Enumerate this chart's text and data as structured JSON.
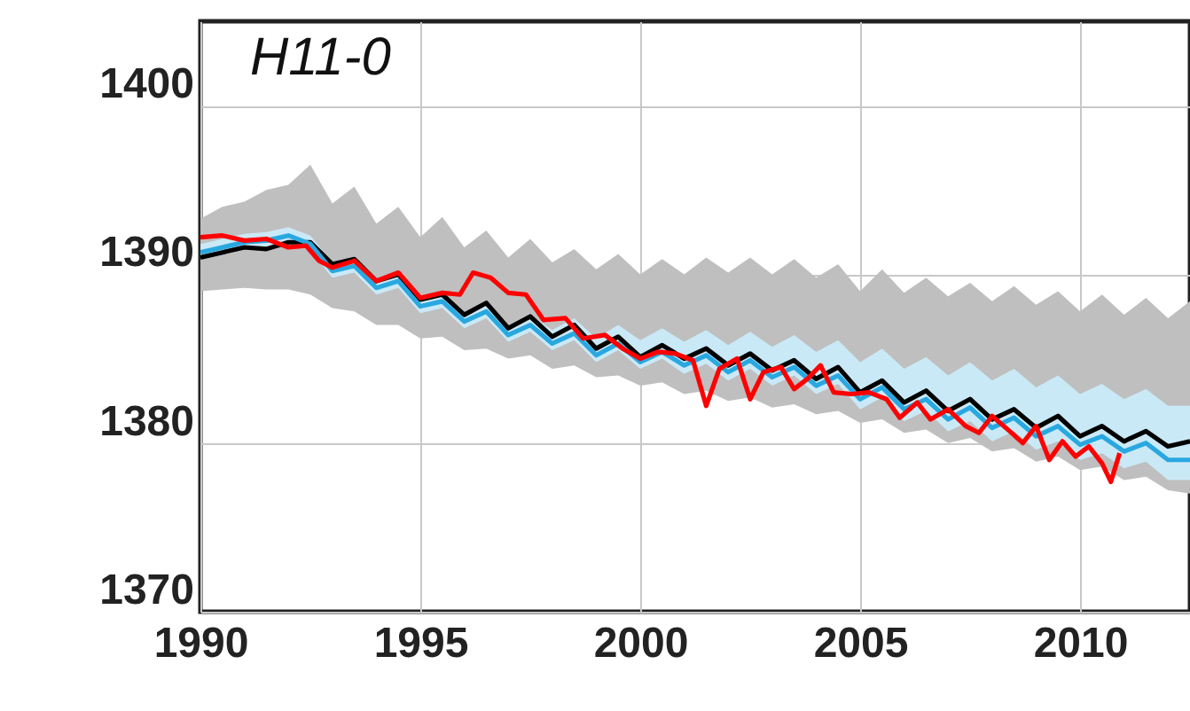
{
  "chart_data": {
    "type": "line",
    "annotations": [
      "H11-0"
    ],
    "xlim": [
      1990,
      2012.5
    ],
    "xticks": [
      1990,
      1995,
      2000,
      2005,
      2010
    ],
    "ylim": [
      1370,
      1405
    ],
    "yticks": [
      1370,
      1380,
      1390,
      1400
    ],
    "grid": true,
    "line_style": "solid",
    "series": [
      {
        "color": "#000000",
        "x": [
          1990.0,
          1990.5,
          1991.0,
          1991.5,
          1992.0,
          1992.5,
          1993.0,
          1993.5,
          1994.0,
          1994.5,
          1995.0,
          1995.5,
          1996.0,
          1996.5,
          1997.0,
          1997.5,
          1998.0,
          1998.5,
          1999.0,
          1999.5,
          2000.0,
          2000.5,
          2001.0,
          2001.5,
          2002.0,
          2002.5,
          2003.0,
          2003.5,
          2004.0,
          2004.5,
          2005.0,
          2005.5,
          2006.0,
          2006.5,
          2007.0,
          2007.5,
          2008.0,
          2008.5,
          2009.0,
          2009.5,
          2010.0,
          2010.5,
          2011.0,
          2011.5,
          2012.0,
          2012.5
        ],
        "values": [
          1391.0,
          1391.3,
          1391.6,
          1391.5,
          1391.9,
          1391.9,
          1390.6,
          1390.9,
          1389.6,
          1390.0,
          1388.5,
          1388.8,
          1387.6,
          1388.3,
          1386.8,
          1387.5,
          1386.3,
          1387.0,
          1385.6,
          1386.3,
          1385.1,
          1385.8,
          1385.0,
          1385.6,
          1384.6,
          1385.3,
          1384.3,
          1384.9,
          1383.8,
          1384.5,
          1383.0,
          1383.7,
          1382.4,
          1383.1,
          1381.9,
          1382.6,
          1381.4,
          1382.0,
          1380.9,
          1381.6,
          1380.4,
          1381.0,
          1380.1,
          1380.7,
          1379.8,
          1380.1
        ],
        "upper": [
          1393.3,
          1394.0,
          1394.3,
          1395.0,
          1395.3,
          1396.5,
          1394.2,
          1395.2,
          1393.0,
          1394.0,
          1392.2,
          1393.4,
          1391.6,
          1392.6,
          1391.0,
          1392.1,
          1390.7,
          1391.5,
          1390.3,
          1391.2,
          1390.0,
          1390.9,
          1390.0,
          1391.0,
          1390.1,
          1391.0,
          1390.0,
          1390.9,
          1389.8,
          1390.6,
          1389.0,
          1390.3,
          1388.9,
          1389.8,
          1388.7,
          1389.5,
          1388.4,
          1389.3,
          1388.2,
          1389.0,
          1387.8,
          1388.8,
          1387.6,
          1388.6,
          1387.4,
          1388.4
        ],
        "lower": [
          1389.0,
          1389.1,
          1389.2,
          1389.1,
          1389.1,
          1388.8,
          1388.0,
          1387.8,
          1387.0,
          1387.0,
          1386.2,
          1386.3,
          1385.5,
          1385.6,
          1385.0,
          1385.2,
          1384.4,
          1384.6,
          1383.9,
          1384.0,
          1383.4,
          1383.6,
          1382.9,
          1383.1,
          1382.5,
          1382.7,
          1382.1,
          1382.3,
          1381.7,
          1381.9,
          1381.2,
          1381.4,
          1380.6,
          1380.8,
          1380.0,
          1380.3,
          1379.5,
          1379.7,
          1378.9,
          1379.2,
          1378.4,
          1378.6,
          1377.8,
          1378.0,
          1377.2,
          1377.0
        ]
      },
      {
        "color": "#29a8e0",
        "x": [
          1990.0,
          1990.5,
          1991.0,
          1991.5,
          1992.0,
          1992.5,
          1993.0,
          1993.5,
          1994.0,
          1994.5,
          1995.0,
          1995.5,
          1996.0,
          1996.5,
          1997.0,
          1997.5,
          1998.0,
          1998.5,
          1999.0,
          1999.5,
          2000.0,
          2000.5,
          2001.0,
          2001.5,
          2002.0,
          2002.5,
          2003.0,
          2003.5,
          2004.0,
          2004.5,
          2005.0,
          2005.5,
          2006.0,
          2006.5,
          2007.0,
          2007.5,
          2008.0,
          2008.5,
          2009.0,
          2009.5,
          2010.0,
          2010.5,
          2011.0,
          2011.5,
          2012.0,
          2012.5
        ],
        "values": [
          1391.3,
          1391.6,
          1391.9,
          1392.0,
          1392.3,
          1391.8,
          1390.2,
          1390.5,
          1389.2,
          1389.6,
          1388.1,
          1388.4,
          1387.2,
          1387.8,
          1386.4,
          1387.0,
          1385.9,
          1386.5,
          1385.2,
          1385.9,
          1384.8,
          1385.4,
          1384.6,
          1385.2,
          1384.2,
          1384.9,
          1383.9,
          1384.5,
          1383.4,
          1384.0,
          1382.6,
          1383.3,
          1382.0,
          1382.6,
          1381.4,
          1382.1,
          1380.9,
          1381.5,
          1380.4,
          1381.0,
          1379.9,
          1380.4,
          1379.5,
          1380.0,
          1379.0,
          1379.0
        ],
        "upper": [
          1391.8,
          1392.1,
          1392.4,
          1392.5,
          1392.8,
          1392.3,
          1390.7,
          1391.0,
          1389.7,
          1390.1,
          1388.6,
          1388.9,
          1387.7,
          1388.3,
          1386.9,
          1387.6,
          1386.7,
          1387.4,
          1386.2,
          1387.0,
          1386.1,
          1386.8,
          1386.0,
          1386.7,
          1385.8,
          1386.6,
          1385.7,
          1386.4,
          1385.4,
          1386.1,
          1384.8,
          1385.6,
          1384.4,
          1385.1,
          1384.0,
          1384.8,
          1383.7,
          1384.4,
          1383.3,
          1384.0,
          1382.9,
          1383.5,
          1382.6,
          1383.2,
          1382.2,
          1382.2
        ],
        "lower": [
          1390.9,
          1391.2,
          1391.5,
          1391.6,
          1391.9,
          1391.4,
          1389.8,
          1390.1,
          1388.8,
          1389.2,
          1387.7,
          1388.0,
          1386.8,
          1387.4,
          1386.0,
          1386.6,
          1385.5,
          1386.1,
          1384.8,
          1385.5,
          1384.4,
          1385.0,
          1384.1,
          1384.7,
          1383.7,
          1384.4,
          1383.4,
          1384.0,
          1382.9,
          1383.5,
          1382.0,
          1382.7,
          1381.3,
          1381.9,
          1380.7,
          1381.3,
          1380.1,
          1380.7,
          1379.6,
          1380.1,
          1379.0,
          1379.4,
          1378.5,
          1378.9,
          1377.8,
          1377.8
        ]
      },
      {
        "color": "#ff0000",
        "x": [
          1990.0,
          1990.5,
          1991.0,
          1991.5,
          1992.0,
          1992.4,
          1992.7,
          1993.0,
          1993.5,
          1994.0,
          1994.5,
          1995.0,
          1995.5,
          1995.9,
          1996.2,
          1996.6,
          1997.0,
          1997.4,
          1997.8,
          1998.3,
          1998.7,
          1999.2,
          1999.6,
          2000.0,
          2000.4,
          2000.8,
          2001.2,
          2001.5,
          2001.8,
          2002.2,
          2002.5,
          2002.8,
          2003.2,
          2003.5,
          2003.8,
          2004.1,
          2004.4,
          2004.8,
          2005.2,
          2005.6,
          2005.9,
          2006.3,
          2006.6,
          2007.0,
          2007.4,
          2007.7,
          2008.0,
          2008.4,
          2008.7,
          2009.0,
          2009.3,
          2009.6,
          2009.9,
          2010.2,
          2010.5,
          2010.7,
          2010.9
        ],
        "values": [
          1392.2,
          1392.3,
          1392.0,
          1392.1,
          1391.6,
          1391.7,
          1390.8,
          1390.4,
          1390.8,
          1389.6,
          1390.1,
          1388.6,
          1388.9,
          1388.8,
          1390.1,
          1389.8,
          1388.9,
          1388.8,
          1387.3,
          1387.4,
          1386.2,
          1386.4,
          1385.6,
          1385.0,
          1385.4,
          1385.3,
          1384.9,
          1382.2,
          1384.4,
          1385.0,
          1382.6,
          1384.2,
          1384.5,
          1383.2,
          1383.8,
          1384.6,
          1383.0,
          1382.9,
          1383.0,
          1382.6,
          1381.5,
          1382.4,
          1381.4,
          1382.0,
          1381.0,
          1380.6,
          1381.6,
          1380.7,
          1380.0,
          1381.0,
          1379.0,
          1380.1,
          1379.2,
          1379.8,
          1378.8,
          1377.7,
          1379.4
        ]
      }
    ]
  }
}
